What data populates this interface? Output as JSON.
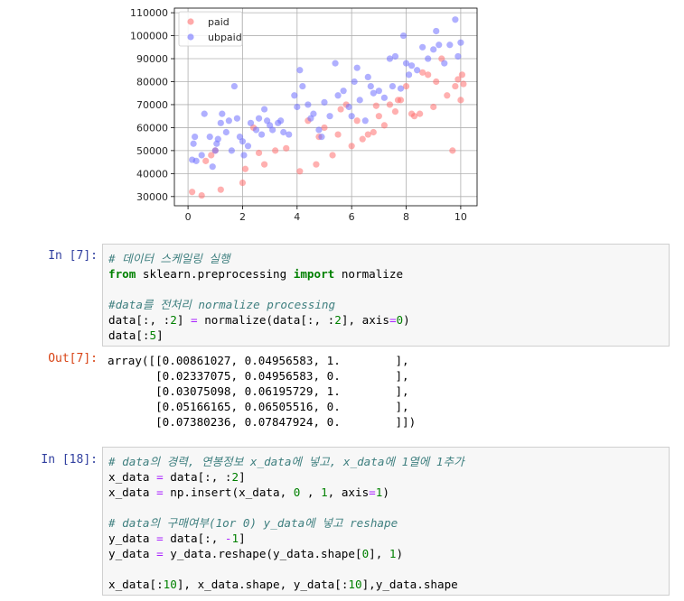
{
  "chart_data": {
    "type": "scatter",
    "title": "",
    "xlabel": "",
    "ylabel": "",
    "xlim": [
      -0.5,
      10.6
    ],
    "ylim": [
      26000,
      112000
    ],
    "xticks": [
      "0",
      "2",
      "4",
      "6",
      "8",
      "10"
    ],
    "xtick_values": [
      0,
      2,
      4,
      6,
      8,
      10
    ],
    "yticks": [
      "30000",
      "40000",
      "50000",
      "60000",
      "70000",
      "80000",
      "90000",
      "100000",
      "110000"
    ],
    "ytick_values": [
      30000,
      40000,
      50000,
      60000,
      70000,
      80000,
      90000,
      100000,
      110000
    ],
    "grid": true,
    "legend_position": "top-left",
    "series": [
      {
        "name": "paid",
        "color": "#ff7070",
        "points": [
          [
            0.15,
            32000
          ],
          [
            0.5,
            30500
          ],
          [
            0.65,
            45500
          ],
          [
            0.85,
            48000
          ],
          [
            1.2,
            33000
          ],
          [
            2.0,
            36000
          ],
          [
            2.1,
            42000
          ],
          [
            2.6,
            49000
          ],
          [
            2.8,
            44000
          ],
          [
            3.2,
            50000
          ],
          [
            3.6,
            51000
          ],
          [
            4.1,
            41000
          ],
          [
            4.4,
            63000
          ],
          [
            4.7,
            44000
          ],
          [
            4.8,
            56000
          ],
          [
            5.0,
            60000
          ],
          [
            5.3,
            48000
          ],
          [
            5.5,
            57000
          ],
          [
            5.8,
            70000
          ],
          [
            6.0,
            52000
          ],
          [
            6.2,
            63000
          ],
          [
            6.4,
            55000
          ],
          [
            6.6,
            57000
          ],
          [
            6.8,
            58000
          ],
          [
            7.0,
            65000
          ],
          [
            7.2,
            61000
          ],
          [
            7.4,
            70000
          ],
          [
            7.6,
            67000
          ],
          [
            7.8,
            72000
          ],
          [
            8.0,
            78000
          ],
          [
            8.2,
            66000
          ],
          [
            8.3,
            65000
          ],
          [
            8.5,
            66000
          ],
          [
            8.6,
            84000
          ],
          [
            8.8,
            83000
          ],
          [
            9.1,
            80000
          ],
          [
            9.3,
            90000
          ],
          [
            9.5,
            74000
          ],
          [
            9.7,
            50000
          ],
          [
            9.8,
            78000
          ],
          [
            9.9,
            81000
          ],
          [
            10.0,
            72000
          ],
          [
            10.05,
            83000
          ],
          [
            10.1,
            79000
          ],
          [
            9.0,
            69000
          ],
          [
            6.9,
            69500
          ],
          [
            7.7,
            72000
          ],
          [
            5.6,
            68000
          ],
          [
            2.4,
            60000
          ],
          [
            1.0,
            50000
          ]
        ]
      },
      {
        "name": "ubpaid",
        "color": "#7070ff",
        "points": [
          [
            0.15,
            46000
          ],
          [
            0.2,
            53000
          ],
          [
            0.25,
            56000
          ],
          [
            0.3,
            45500
          ],
          [
            0.6,
            66000
          ],
          [
            0.8,
            56000
          ],
          [
            0.9,
            43000
          ],
          [
            1.0,
            50000
          ],
          [
            1.1,
            55000
          ],
          [
            1.2,
            62000
          ],
          [
            1.25,
            66000
          ],
          [
            1.4,
            58000
          ],
          [
            1.5,
            63000
          ],
          [
            1.6,
            50000
          ],
          [
            1.7,
            78000
          ],
          [
            1.8,
            64000
          ],
          [
            1.9,
            56000
          ],
          [
            2.0,
            54000
          ],
          [
            2.05,
            48000
          ],
          [
            2.2,
            52000
          ],
          [
            2.3,
            62000
          ],
          [
            2.5,
            59000
          ],
          [
            2.6,
            64000
          ],
          [
            2.7,
            57000
          ],
          [
            2.8,
            68000
          ],
          [
            2.9,
            63000
          ],
          [
            3.0,
            61000
          ],
          [
            3.1,
            59000
          ],
          [
            3.3,
            62000
          ],
          [
            3.5,
            58000
          ],
          [
            3.7,
            57000
          ],
          [
            3.9,
            74000
          ],
          [
            4.0,
            69000
          ],
          [
            4.1,
            85000
          ],
          [
            4.2,
            78000
          ],
          [
            4.4,
            70000
          ],
          [
            4.5,
            64000
          ],
          [
            4.6,
            66000
          ],
          [
            4.8,
            59000
          ],
          [
            5.0,
            71000
          ],
          [
            5.2,
            65000
          ],
          [
            5.4,
            88000
          ],
          [
            5.5,
            74000
          ],
          [
            5.7,
            76000
          ],
          [
            5.9,
            69000
          ],
          [
            6.0,
            65000
          ],
          [
            6.1,
            80000
          ],
          [
            6.2,
            86000
          ],
          [
            6.3,
            72000
          ],
          [
            6.5,
            63000
          ],
          [
            6.6,
            82000
          ],
          [
            6.8,
            75000
          ],
          [
            7.0,
            76000
          ],
          [
            7.2,
            73000
          ],
          [
            7.4,
            90000
          ],
          [
            7.5,
            78000
          ],
          [
            7.6,
            91000
          ],
          [
            7.8,
            77000
          ],
          [
            7.9,
            100000
          ],
          [
            8.0,
            88000
          ],
          [
            8.1,
            83000
          ],
          [
            8.2,
            87000
          ],
          [
            8.4,
            85000
          ],
          [
            8.6,
            95000
          ],
          [
            8.8,
            90000
          ],
          [
            9.0,
            94000
          ],
          [
            9.1,
            102000
          ],
          [
            9.2,
            96000
          ],
          [
            9.4,
            88000
          ],
          [
            9.6,
            96000
          ],
          [
            9.8,
            107000
          ],
          [
            9.9,
            91000
          ],
          [
            10.0,
            97000
          ],
          [
            0.5,
            48000
          ],
          [
            1.05,
            53000
          ],
          [
            3.4,
            63000
          ],
          [
            4.9,
            56000
          ],
          [
            6.7,
            78000
          ]
        ]
      }
    ]
  },
  "cells": [
    {
      "prompt": "In [7]:",
      "lines": [
        [
          [
            "cm",
            "# 데이터 스케일링 실행"
          ]
        ],
        [
          [
            "kw",
            "from"
          ],
          [
            "",
            " sklearn.preprocessing "
          ],
          [
            "kw",
            "import"
          ],
          [
            "",
            " normalize"
          ]
        ],
        [],
        [
          [
            "cm",
            "#data를 전처리 normalize processing"
          ]
        ],
        [
          [
            "",
            "data[:, :"
          ],
          [
            "num",
            "2"
          ],
          [
            "",
            "] "
          ],
          [
            "op",
            "="
          ],
          [
            "",
            " normalize(data[:, :"
          ],
          [
            "num",
            "2"
          ],
          [
            "",
            "], axis"
          ],
          [
            "op",
            "="
          ],
          [
            "num",
            "0"
          ],
          [
            "",
            ")"
          ]
        ],
        [
          [
            "",
            "data[:"
          ],
          [
            "num",
            "5"
          ],
          [
            "",
            "]"
          ]
        ]
      ]
    },
    {
      "prompt": "In [18]:",
      "lines": [
        [
          [
            "cm",
            "# data의 경력, 연봉정보 x_data에 넣고, x_data에 1열에 1추가"
          ]
        ],
        [
          [
            "",
            "x_data "
          ],
          [
            "op",
            "="
          ],
          [
            "",
            " data[:, :"
          ],
          [
            "num",
            "2"
          ],
          [
            "",
            "]"
          ]
        ],
        [
          [
            "",
            "x_data "
          ],
          [
            "op",
            "="
          ],
          [
            "",
            " np.insert(x_data, "
          ],
          [
            "num",
            "0"
          ],
          [
            "",
            " , "
          ],
          [
            "num",
            "1"
          ],
          [
            "",
            ", axis"
          ],
          [
            "op",
            "="
          ],
          [
            "num",
            "1"
          ],
          [
            "",
            ")"
          ]
        ],
        [],
        [
          [
            "cm",
            "# data의 구매여부(1or 0) y_data에 넣고 reshape"
          ]
        ],
        [
          [
            "",
            "y_data "
          ],
          [
            "op",
            "="
          ],
          [
            "",
            " data[:, "
          ],
          [
            "op",
            "-"
          ],
          [
            "num",
            "1"
          ],
          [
            "",
            "]"
          ]
        ],
        [
          [
            "",
            "y_data "
          ],
          [
            "op",
            "="
          ],
          [
            "",
            " y_data.reshape(y_data.shape["
          ],
          [
            "num",
            "0"
          ],
          [
            "",
            "], "
          ],
          [
            "num",
            "1"
          ],
          [
            "",
            ")"
          ]
        ],
        [],
        [
          [
            "",
            "x_data[:"
          ],
          [
            "num",
            "10"
          ],
          [
            "",
            "], x_data.shape, y_data[:"
          ],
          [
            "num",
            "10"
          ],
          [
            "",
            "],y_data.shape"
          ]
        ]
      ]
    }
  ],
  "output": {
    "prompt": "Out[7]:",
    "lines": [
      "array([[0.00861027, 0.04956583, 1.        ],",
      "       [0.02337075, 0.04956583, 0.        ],",
      "       [0.03075098, 0.06195729, 1.        ],",
      "       [0.05166165, 0.06505516, 0.        ],",
      "       [0.07380236, 0.07847924, 0.        ]])"
    ]
  }
}
